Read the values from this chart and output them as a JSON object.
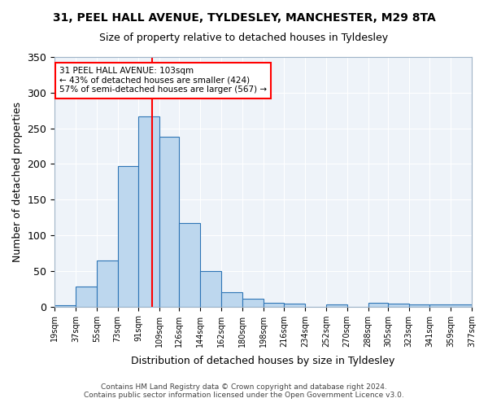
{
  "title": "31, PEEL HALL AVENUE, TYLDESLEY, MANCHESTER, M29 8TA",
  "subtitle": "Size of property relative to detached houses in Tyldesley",
  "xlabel": "Distribution of detached houses by size in Tyldesley",
  "ylabel": "Number of detached properties",
  "bar_values": [
    2,
    28,
    65,
    197,
    267,
    238,
    117,
    50,
    20,
    11,
    5,
    4,
    0,
    3,
    0,
    5,
    4,
    3,
    3
  ],
  "bin_edges": [
    19,
    37,
    55,
    73,
    91,
    109,
    126,
    144,
    162,
    180,
    198,
    216,
    234,
    252,
    270,
    288,
    305,
    323,
    341,
    377
  ],
  "tick_labels": [
    "19sqm",
    "37sqm",
    "55sqm",
    "73sqm",
    "91sqm",
    "109sqm",
    "126sqm",
    "144sqm",
    "162sqm",
    "180sqm",
    "198sqm",
    "216sqm",
    "234sqm",
    "252sqm",
    "270sqm",
    "288sqm",
    "305sqm",
    "323sqm",
    "341sqm",
    "359sqm",
    "377sqm"
  ],
  "bar_color": "#bdd7ee",
  "bar_edge_color": "#2e75b6",
  "vline_x": 103,
  "vline_color": "red",
  "annotation_text": "31 PEEL HALL AVENUE: 103sqm\n← 43% of detached houses are smaller (424)\n57% of semi-detached houses are larger (567) →",
  "annotation_box_color": "white",
  "annotation_box_edge": "red",
  "ylim": [
    0,
    350
  ],
  "yticks": [
    0,
    50,
    100,
    150,
    200,
    250,
    300,
    350
  ],
  "bg_color": "#eef3f9",
  "footer_line1": "Contains HM Land Registry data © Crown copyright and database right 2024.",
  "footer_line2": "Contains public sector information licensed under the Open Government Licence v3.0."
}
